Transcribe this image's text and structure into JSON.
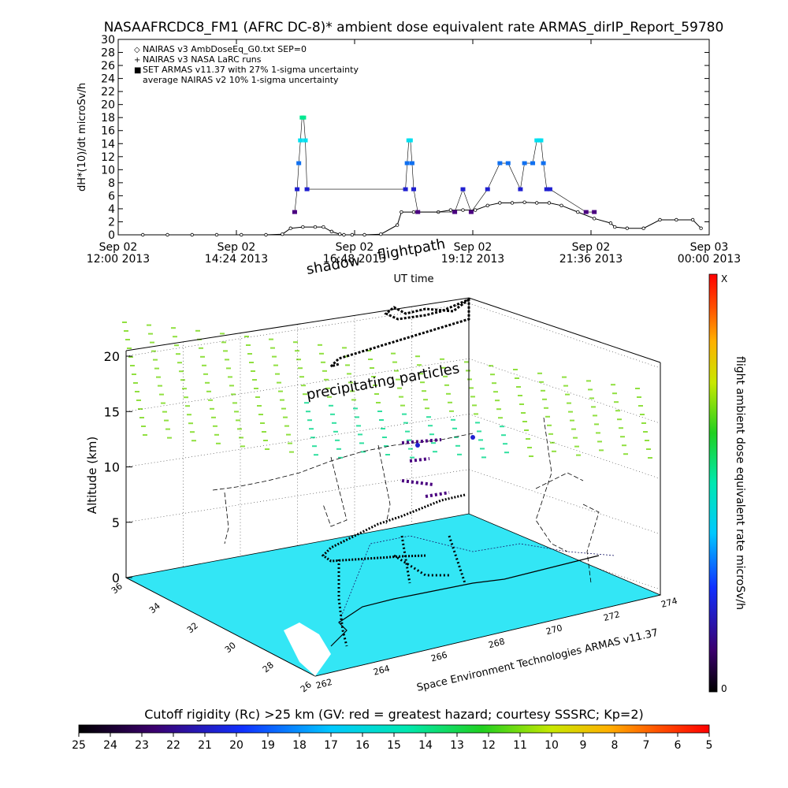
{
  "title": "NASAAFRCDC8_FM1 (AFRC DC-8)* ambient dose equivalent rate ARMAS_dirIP_Report_59780",
  "chart_data": [
    {
      "type": "scatter",
      "ylabel": "dH*(10)/dt microSv/h",
      "xlabel": "UT time",
      "ylim": [
        0,
        30
      ],
      "yticks": [
        0,
        2,
        4,
        6,
        8,
        10,
        12,
        14,
        16,
        18,
        20,
        22,
        24,
        26,
        28,
        30
      ],
      "xlim": [
        "2013-09-02 12:00",
        "2013-09-03 00:00"
      ],
      "xticks": [
        {
          "t": "2013-09-02 12:00",
          "line1": "Sep 02",
          "line2": "12:00 2013"
        },
        {
          "t": "2013-09-02 14:24",
          "line1": "Sep 02",
          "line2": "14:24 2013"
        },
        {
          "t": "2013-09-02 16:48",
          "line1": "Sep 02",
          "line2": "16:48 2013"
        },
        {
          "t": "2013-09-02 19:12",
          "line1": "Sep 02",
          "line2": "19:12 2013"
        },
        {
          "t": "2013-09-02 21:36",
          "line1": "Sep 02",
          "line2": "21:36 2013"
        },
        {
          "t": "2013-09-03 00:00",
          "line1": "Sep 03",
          "line2": "00:00 2013"
        }
      ],
      "legend_position": "top-left",
      "legend": [
        {
          "marker": "◇",
          "label": "NAIRAS v3 AmbDoseEq_G0.txt SEP=0"
        },
        {
          "marker": "+",
          "label": "NAIRAS v3 NASA LaRC runs"
        },
        {
          "marker": "■",
          "label": "SET ARMAS v11.37 with 27% 1-sigma uncertainty"
        },
        {
          "marker": "",
          "label": "average NAIRAS v2 10% 1-sigma uncertainty"
        }
      ],
      "series": [
        {
          "name": "NAIRAS v3 AmbDoseEq_G0.txt SEP=0",
          "x": [
            "12:30",
            "13:00",
            "13:30",
            "14:00",
            "14:30",
            "15:00",
            "15:20",
            "15:30",
            "15:45",
            "16:00",
            "16:10",
            "16:20",
            "16:30",
            "16:35",
            "16:45",
            "17:00",
            "17:20",
            "17:40",
            "17:45",
            "18:00",
            "18:30",
            "18:45",
            "19:00",
            "19:15",
            "19:30",
            "19:45",
            "20:00",
            "20:15",
            "20:30",
            "20:45",
            "21:00",
            "21:20",
            "21:40",
            "22:00",
            "22:05",
            "22:20",
            "22:40",
            "23:00",
            "23:20",
            "23:40",
            "23:50"
          ],
          "y": [
            0,
            0,
            0,
            0,
            0,
            0,
            0.1,
            1,
            1.2,
            1.2,
            1.2,
            0.5,
            0.1,
            0,
            0,
            0,
            0.1,
            1.5,
            3.5,
            3.5,
            3.5,
            3.8,
            3.8,
            3.8,
            4.5,
            4.9,
            4.9,
            5,
            4.9,
            4.9,
            4.5,
            3.5,
            2.5,
            1.8,
            1.2,
            1,
            1,
            2.3,
            2.3,
            2.3,
            1
          ]
        },
        {
          "name": "SET ARMAS v11.37 with 27% 1-sigma uncertainty",
          "x": [
            "15:35",
            "15:38",
            "15:40",
            "15:42",
            "15:44",
            "15:46",
            "15:48",
            "15:50",
            "17:50",
            "17:52",
            "17:54",
            "17:56",
            "17:58",
            "18:00",
            "18:05",
            "18:50",
            "19:00",
            "19:10",
            "19:30",
            "19:45",
            "19:55",
            "20:10",
            "20:15",
            "20:25",
            "20:30",
            "20:33",
            "20:35",
            "20:38",
            "20:42",
            "20:46",
            "21:30",
            "21:40"
          ],
          "y": [
            3.5,
            7,
            11,
            14.5,
            18,
            18,
            14.5,
            7,
            7,
            11,
            14.5,
            14.5,
            11,
            7,
            3.5,
            3.5,
            7,
            3.5,
            7,
            11,
            11,
            7,
            11,
            11,
            14.5,
            14.5,
            14.5,
            11,
            7,
            7,
            3.5,
            3.5
          ]
        }
      ]
    },
    {
      "type": "3d-scatter",
      "zlabel": "Altitude (km)",
      "zticks": [
        0,
        5,
        10,
        15,
        20
      ],
      "lat_ticks": [
        26,
        28,
        30,
        32,
        34,
        36
      ],
      "lon_ticks": [
        262,
        264,
        266,
        268,
        270,
        272,
        274
      ],
      "labels": [
        "flightpath",
        "shadow",
        "precipitating particles"
      ],
      "credit": "Space Environment Technologies ARMAS v11.37",
      "colorbar": {
        "label": "flight ambient dose equivalent rate microSv/h",
        "top": "X",
        "bottom": "0"
      }
    },
    {
      "type": "colorbar",
      "title": "Cutoff rigidity (Rc) >25 km (GV: red = greatest hazard; courtesy SSSRC; Kp=2)",
      "ticks": [
        25,
        24,
        23,
        22,
        21,
        20,
        19,
        18,
        17,
        16,
        15,
        14,
        13,
        12,
        11,
        10,
        9,
        8,
        7,
        6,
        5
      ]
    }
  ]
}
